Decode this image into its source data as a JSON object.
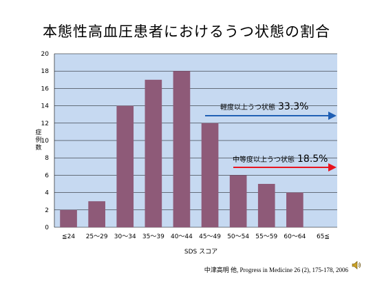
{
  "slide": {
    "title": "本態性高血圧患者におけるうつ状態の割合",
    "citation": "中津高明 他, Progress in Medicine 26 (2), 175-178, 2006"
  },
  "icons": {
    "speaker": "speaker-icon"
  },
  "colors": {
    "plot_bg": "#c6d9f1",
    "bar": "#8e5a78",
    "mild_arrow": "#1f5fb4",
    "moderate_arrow": "#e8141e"
  },
  "chart_data": {
    "type": "bar",
    "categories": [
      "≦24",
      "25〜29",
      "30〜34",
      "35〜39",
      "40〜44",
      "45〜49",
      "50〜54",
      "55〜59",
      "60〜64",
      "65≦"
    ],
    "values": [
      2,
      3,
      14,
      17,
      18,
      12,
      6,
      5,
      4,
      0
    ],
    "xlabel": "SDS スコア",
    "ylabel": "症例数",
    "ylim": [
      0,
      20
    ],
    "yticks": [
      0,
      2,
      4,
      6,
      8,
      10,
      12,
      14,
      16,
      18,
      20
    ],
    "grid": true,
    "annotations": [
      {
        "label": "軽度以上うつ状態",
        "value": "33.3%"
      },
      {
        "label": "中等度以上うつ状態",
        "value": "18.5%"
      }
    ]
  }
}
